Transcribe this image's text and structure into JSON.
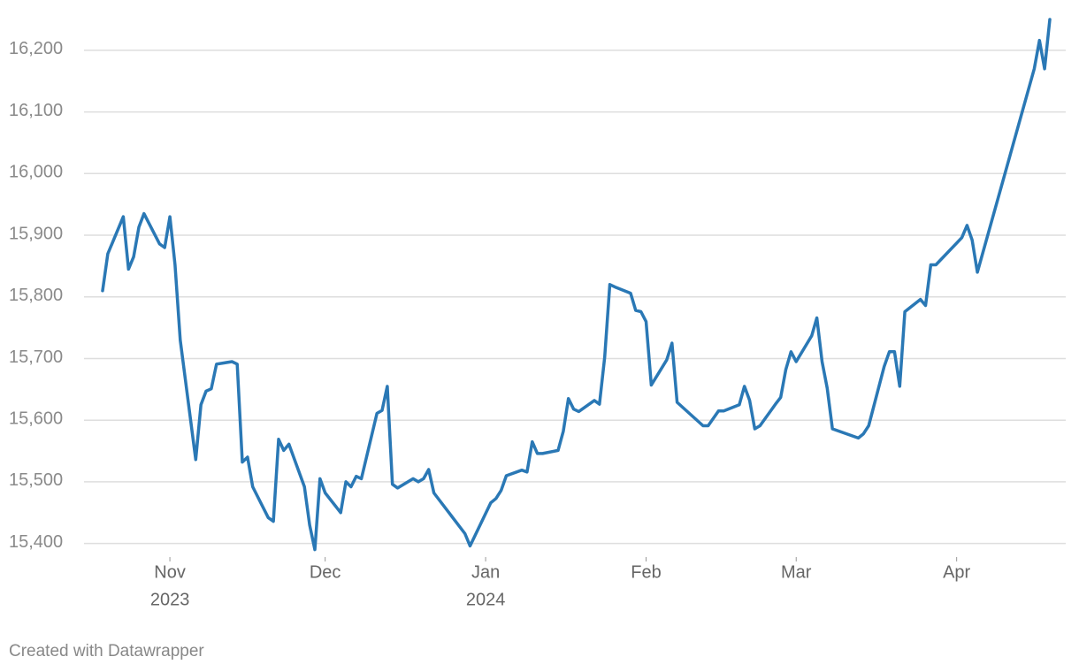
{
  "chart_data": {
    "type": "line",
    "footer": "Created with Datawrapper",
    "x": [
      "2023-10-19",
      "2023-10-20",
      "2023-10-23",
      "2023-10-24",
      "2023-10-25",
      "2023-10-26",
      "2023-10-27",
      "2023-10-30",
      "2023-10-31",
      "2023-11-01",
      "2023-11-02",
      "2023-11-03",
      "2023-11-06",
      "2023-11-07",
      "2023-11-08",
      "2023-11-09",
      "2023-11-10",
      "2023-11-13",
      "2023-11-14",
      "2023-11-15",
      "2023-11-16",
      "2023-11-17",
      "2023-11-20",
      "2023-11-21",
      "2023-11-22",
      "2023-11-23",
      "2023-11-24",
      "2023-11-27",
      "2023-11-28",
      "2023-11-29",
      "2023-11-30",
      "2023-12-01",
      "2023-12-04",
      "2023-12-05",
      "2023-12-06",
      "2023-12-07",
      "2023-12-08",
      "2023-12-11",
      "2023-12-12",
      "2023-12-13",
      "2023-12-14",
      "2023-12-15",
      "2023-12-18",
      "2023-12-19",
      "2023-12-20",
      "2023-12-21",
      "2023-12-22",
      "2023-12-28",
      "2023-12-29",
      "2024-01-02",
      "2024-01-03",
      "2024-01-04",
      "2024-01-05",
      "2024-01-08",
      "2024-01-09",
      "2024-01-10",
      "2024-01-11",
      "2024-01-12",
      "2024-01-15",
      "2024-01-16",
      "2024-01-17",
      "2024-01-18",
      "2024-01-19",
      "2024-01-22",
      "2024-01-23",
      "2024-01-24",
      "2024-01-25",
      "2024-01-26",
      "2024-01-29",
      "2024-01-30",
      "2024-01-31",
      "2024-02-01",
      "2024-02-02",
      "2024-02-05",
      "2024-02-06",
      "2024-02-07",
      "2024-02-12",
      "2024-02-13",
      "2024-02-15",
      "2024-02-16",
      "2024-02-19",
      "2024-02-20",
      "2024-02-21",
      "2024-02-22",
      "2024-02-23",
      "2024-02-26",
      "2024-02-27",
      "2024-02-28",
      "2024-02-29",
      "2024-03-01",
      "2024-03-04",
      "2024-03-05",
      "2024-03-06",
      "2024-03-07",
      "2024-03-08",
      "2024-03-13",
      "2024-03-14",
      "2024-03-15",
      "2024-03-18",
      "2024-03-19",
      "2024-03-20",
      "2024-03-21",
      "2024-03-22",
      "2024-03-25",
      "2024-03-26",
      "2024-03-27",
      "2024-03-28",
      "2024-04-02",
      "2024-04-03",
      "2024-04-04",
      "2024-04-05",
      "2024-04-16",
      "2024-04-17",
      "2024-04-18",
      "2024-04-19"
    ],
    "series": [
      {
        "color": "#2a78b5",
        "values": [
          15810,
          15870,
          15930,
          15845,
          15865,
          15913,
          15935,
          15886,
          15880,
          15930,
          15852,
          15730,
          15536,
          15625,
          15647,
          15651,
          15691,
          15695,
          15691,
          15532,
          15540,
          15492,
          15442,
          15436,
          15569,
          15551,
          15561,
          15492,
          15430,
          15390,
          15505,
          15482,
          15450,
          15500,
          15492,
          15509,
          15505,
          15611,
          15616,
          15655,
          15496,
          15490,
          15505,
          15500,
          15505,
          15520,
          15482,
          15416,
          15396,
          15466,
          15473,
          15486,
          15510,
          15519,
          15516,
          15565,
          15546,
          15546,
          15551,
          15582,
          15635,
          15618,
          15614,
          15632,
          15626,
          15702,
          15820,
          15816,
          15806,
          15778,
          15776,
          15760,
          15657,
          15698,
          15725,
          15629,
          15591,
          15591,
          15615,
          15615,
          15625,
          15655,
          15632,
          15586,
          15591,
          15626,
          15637,
          15682,
          15711,
          15695,
          15737,
          15766,
          15695,
          15652,
          15586,
          15571,
          15578,
          15591,
          15687,
          15711,
          15711,
          15655,
          15776,
          15796,
          15786,
          15852,
          15852,
          15896,
          15916,
          15892,
          15840,
          16170,
          16216,
          16170,
          16250
        ]
      }
    ],
    "xlim": [
      "2023-10-19",
      "2024-04-19"
    ],
    "xticks": [
      {
        "value": "2023-11-01",
        "label": "Nov",
        "year": "2023"
      },
      {
        "value": "2023-12-01",
        "label": "Dec"
      },
      {
        "value": "2024-01-01",
        "label": "Jan",
        "year": "2024"
      },
      {
        "value": "2024-02-01",
        "label": "Feb"
      },
      {
        "value": "2024-03-01",
        "label": "Mar"
      },
      {
        "value": "2024-04-01",
        "label": "Apr"
      }
    ],
    "ylim": [
      15378,
      16250
    ],
    "yticks": [
      {
        "value": 15400,
        "label": "15,400"
      },
      {
        "value": 15500,
        "label": "15,500"
      },
      {
        "value": 15600,
        "label": "15,600"
      },
      {
        "value": 15700,
        "label": "15,700"
      },
      {
        "value": 15800,
        "label": "15,800"
      },
      {
        "value": 15900,
        "label": "15,900"
      },
      {
        "value": 16000,
        "label": "16,000"
      },
      {
        "value": 16100,
        "label": "16,100"
      },
      {
        "value": 16200,
        "label": "16,200"
      }
    ],
    "grid": true
  }
}
